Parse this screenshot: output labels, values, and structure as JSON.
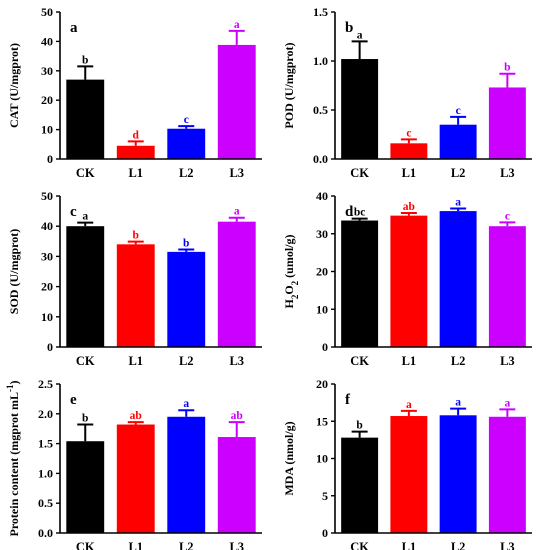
{
  "categories": [
    "CK",
    "L1",
    "L2",
    "L3"
  ],
  "colors": [
    "#000000",
    "#ff0000",
    "#0000ff",
    "#cc00ff"
  ],
  "chart_data": [
    {
      "type": "bar",
      "letter": "a",
      "ylabel": "CAT (U/mgprot)",
      "categories": [
        "CK",
        "L1",
        "L2",
        "L3"
      ],
      "values": [
        27.0,
        4.5,
        10.3,
        38.8
      ],
      "errors": [
        4.5,
        1.5,
        0.9,
        4.8
      ],
      "sig": [
        "b",
        "d",
        "c",
        "a"
      ],
      "ylim": [
        0,
        50
      ],
      "yticks": [
        0,
        10,
        20,
        30,
        40,
        50
      ]
    },
    {
      "type": "bar",
      "letter": "b",
      "ylabel": "POD (U/mgprot)",
      "categories": [
        "CK",
        "L1",
        "L2",
        "L3"
      ],
      "values": [
        1.02,
        0.16,
        0.35,
        0.73
      ],
      "errors": [
        0.18,
        0.04,
        0.08,
        0.14
      ],
      "sig": [
        "a",
        "c",
        "c",
        "b"
      ],
      "ylim": [
        0,
        1.5
      ],
      "yticks": [
        "0.0",
        "0.5",
        "1.0",
        "1.5"
      ]
    },
    {
      "type": "bar",
      "letter": "c",
      "ylabel": "SOD (U/mgprot)",
      "categories": [
        "CK",
        "L1",
        "L2",
        "L3"
      ],
      "values": [
        40.0,
        34.0,
        31.5,
        41.5
      ],
      "errors": [
        1.2,
        0.9,
        0.8,
        1.3
      ],
      "sig": [
        "a",
        "b",
        "b",
        "a"
      ],
      "ylim": [
        0,
        50
      ],
      "yticks": [
        0,
        10,
        20,
        30,
        40,
        50
      ]
    },
    {
      "type": "bar",
      "letter": "d",
      "ylabel_main": "H",
      "ylabel_sub1": "2",
      "ylabel_mid": "O",
      "ylabel_sub2": "2",
      "ylabel_tail": " (umol/g)",
      "categories": [
        "CK",
        "L1",
        "L2",
        "L3"
      ],
      "values": [
        33.5,
        34.8,
        36.0,
        32.0
      ],
      "errors": [
        0.5,
        0.7,
        0.7,
        1.0
      ],
      "sig": [
        "bc",
        "ab",
        "a",
        "c"
      ],
      "ylim": [
        0,
        40
      ],
      "yticks": [
        0,
        10,
        20,
        30,
        40
      ]
    },
    {
      "type": "bar",
      "letter": "e",
      "ylabel_main": "Protein content (mgprot mL",
      "ylabel_sup": "-1",
      "ylabel_tail": ")",
      "categories": [
        "CK",
        "L1",
        "L2",
        "L3"
      ],
      "values": [
        1.54,
        1.82,
        1.95,
        1.61
      ],
      "errors": [
        0.28,
        0.04,
        0.11,
        0.25
      ],
      "sig": [
        "b",
        "ab",
        "a",
        "ab"
      ],
      "ylim": [
        0,
        2.5
      ],
      "yticks": [
        "0.0",
        "0.5",
        "1.0",
        "1.5",
        "2.0",
        "2.5"
      ]
    },
    {
      "type": "bar",
      "letter": "f",
      "ylabel": "MDA (nmol/g)",
      "categories": [
        "CK",
        "L1",
        "L2",
        "L3"
      ],
      "values": [
        12.8,
        15.7,
        15.8,
        15.6
      ],
      "errors": [
        0.8,
        0.7,
        0.9,
        1.0
      ],
      "sig": [
        "b",
        "a",
        "a",
        "a"
      ],
      "ylim": [
        0,
        20
      ],
      "yticks": [
        0,
        5,
        10,
        15,
        20
      ]
    }
  ]
}
